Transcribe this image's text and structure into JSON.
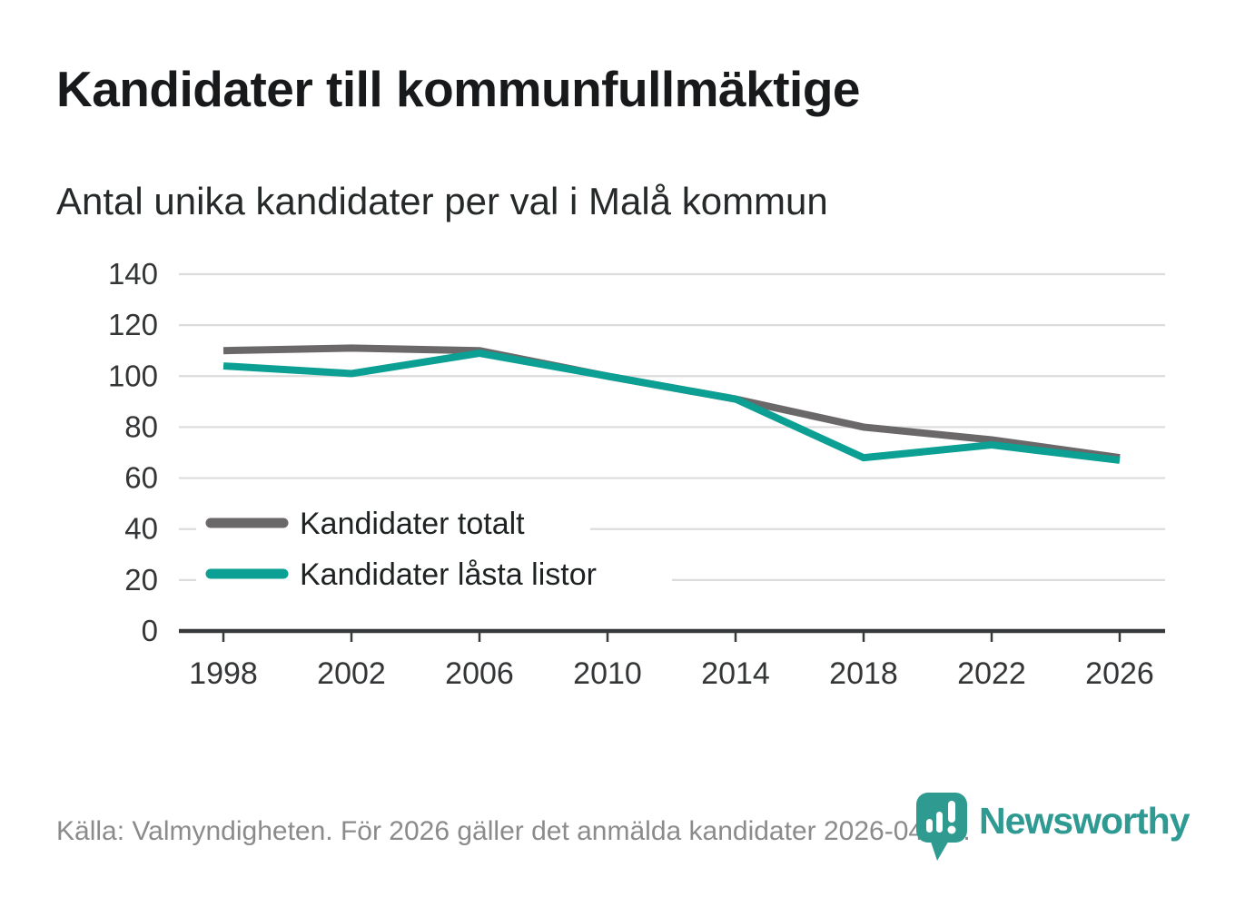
{
  "header": {
    "title": "Kandidater till kommunfullmäktige",
    "subtitle": "Antal unika kandidater per val i Malå kommun"
  },
  "chart_data": {
    "type": "line",
    "x": [
      1998,
      2002,
      2006,
      2010,
      2014,
      2018,
      2022,
      2026
    ],
    "series": [
      {
        "name": "Kandidater totalt",
        "color": "#6b6869",
        "values": [
          110,
          111,
          110,
          100,
          91,
          80,
          75,
          68
        ]
      },
      {
        "name": "Kandidater låsta listor",
        "color": "#0ba093",
        "values": [
          104,
          101,
          109,
          100,
          91,
          68,
          73,
          67
        ]
      }
    ],
    "title": "Kandidater till kommunfullmäktige",
    "subtitle": "Antal unika kandidater per val i Malå kommun",
    "xlabel": "",
    "ylabel": "",
    "ylim": [
      0,
      140
    ],
    "yticks": [
      0,
      20,
      40,
      60,
      80,
      100,
      120,
      140
    ],
    "grid": true,
    "legend_position": "inside-bottom-left"
  },
  "footer": {
    "source": "Källa: Valmyndigheten. För 2026 gäller det anmälda kandidater 2026-04-10."
  },
  "branding": {
    "logo_text": "Newsworthy",
    "logo_icon": "newsworthy-speech-bubble-bar-chart",
    "logo_color": "#2e9a92"
  },
  "colors": {
    "background": "#ffffff",
    "title_text": "#17191a",
    "subtitle_text": "#26292a",
    "tick_text": "#333536",
    "legend_text": "#1f2223",
    "gridline": "#dcdcdc",
    "axis_line": "#37393a",
    "footer_text": "#8b8b8b",
    "series_total": "#6b6869",
    "series_locked": "#0ba093",
    "brand_teal": "#2e9a92"
  }
}
